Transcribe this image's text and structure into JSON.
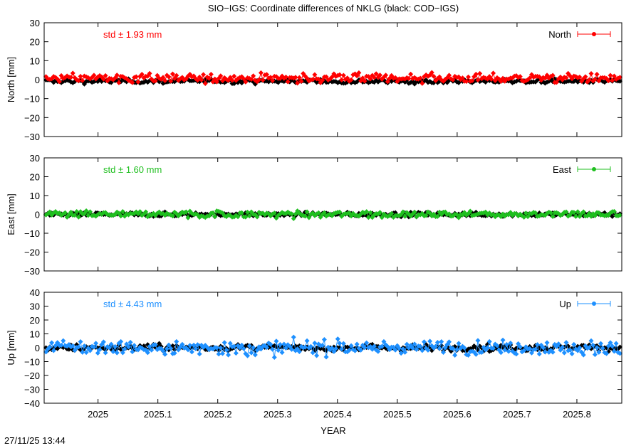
{
  "title": "SIO−IGS: Coordinate differences of NKLG (black: COD−IGS)",
  "footer_timestamp": "27/11/25 13:44",
  "chart_data": [
    {
      "type": "scatter",
      "panel": "north",
      "ylabel": "North [mm]",
      "ylim": [
        -30,
        30
      ],
      "yticks": [
        -30,
        -20,
        -10,
        0,
        10,
        20,
        30
      ],
      "ytick_labels": [
        "−30",
        "−20",
        "−10",
        "0",
        "10",
        "20",
        "30"
      ],
      "xlim": [
        2024.91,
        2025.875
      ],
      "std_text": "std ± 1.93 mm",
      "legend": "North",
      "color": "#ff0000",
      "ref_color": "#000000",
      "primary_spread": 1.93,
      "primary_offset": 0.8,
      "ref_spread": 1.0,
      "ref_offset": -0.8,
      "series": [
        {
          "values_note": "daily values generated from std"
        },
        {
          "values_note": "black reference series"
        }
      ]
    },
    {
      "type": "scatter",
      "panel": "east",
      "ylabel": "East [mm]",
      "ylim": [
        -30,
        30
      ],
      "yticks": [
        -30,
        -20,
        -10,
        0,
        10,
        20,
        30
      ],
      "ytick_labels": [
        "−30",
        "−20",
        "−10",
        "0",
        "10",
        "20",
        "30"
      ],
      "xlim": [
        2024.91,
        2025.875
      ],
      "std_text": "std ± 1.60 mm",
      "legend": "East",
      "color": "#1fbf1f",
      "ref_color": "#000000",
      "primary_spread": 1.6,
      "primary_offset": 0.0,
      "ref_spread": 0.9,
      "ref_offset": 0.0
    },
    {
      "type": "scatter",
      "panel": "up",
      "ylabel": "Up [mm]",
      "ylim": [
        -40,
        40
      ],
      "yticks": [
        -40,
        -30,
        -20,
        -10,
        0,
        10,
        20,
        30,
        40
      ],
      "ytick_labels": [
        "−40",
        "−30",
        "−20",
        "−10",
        "0",
        "10",
        "20",
        "30",
        "40"
      ],
      "xlim": [
        2024.91,
        2025.875
      ],
      "std_text": "std ± 4.43 mm",
      "legend": "Up",
      "color": "#1e90ff",
      "ref_color": "#000000",
      "primary_spread": 4.43,
      "primary_offset": 0.0,
      "ref_spread": 2.0,
      "ref_offset": 0.0
    }
  ],
  "x_axis": {
    "label": "YEAR",
    "ticks": [
      2025,
      2025.1,
      2025.2,
      2025.3,
      2025.4,
      2025.5,
      2025.6,
      2025.7,
      2025.8
    ],
    "tick_labels": [
      "2025",
      "2025.1",
      "2025.2",
      "2025.3",
      "2025.4",
      "2025.5",
      "2025.6",
      "2025.7",
      "2025.8"
    ]
  }
}
